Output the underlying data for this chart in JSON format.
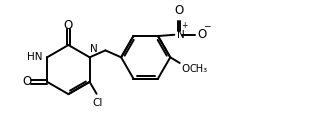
{
  "background": "#ffffff",
  "line_color": "#000000",
  "lw": 1.4,
  "fs": 7.5,
  "xlim": [
    0,
    10.5
  ],
  "ylim": [
    0,
    4.3
  ]
}
